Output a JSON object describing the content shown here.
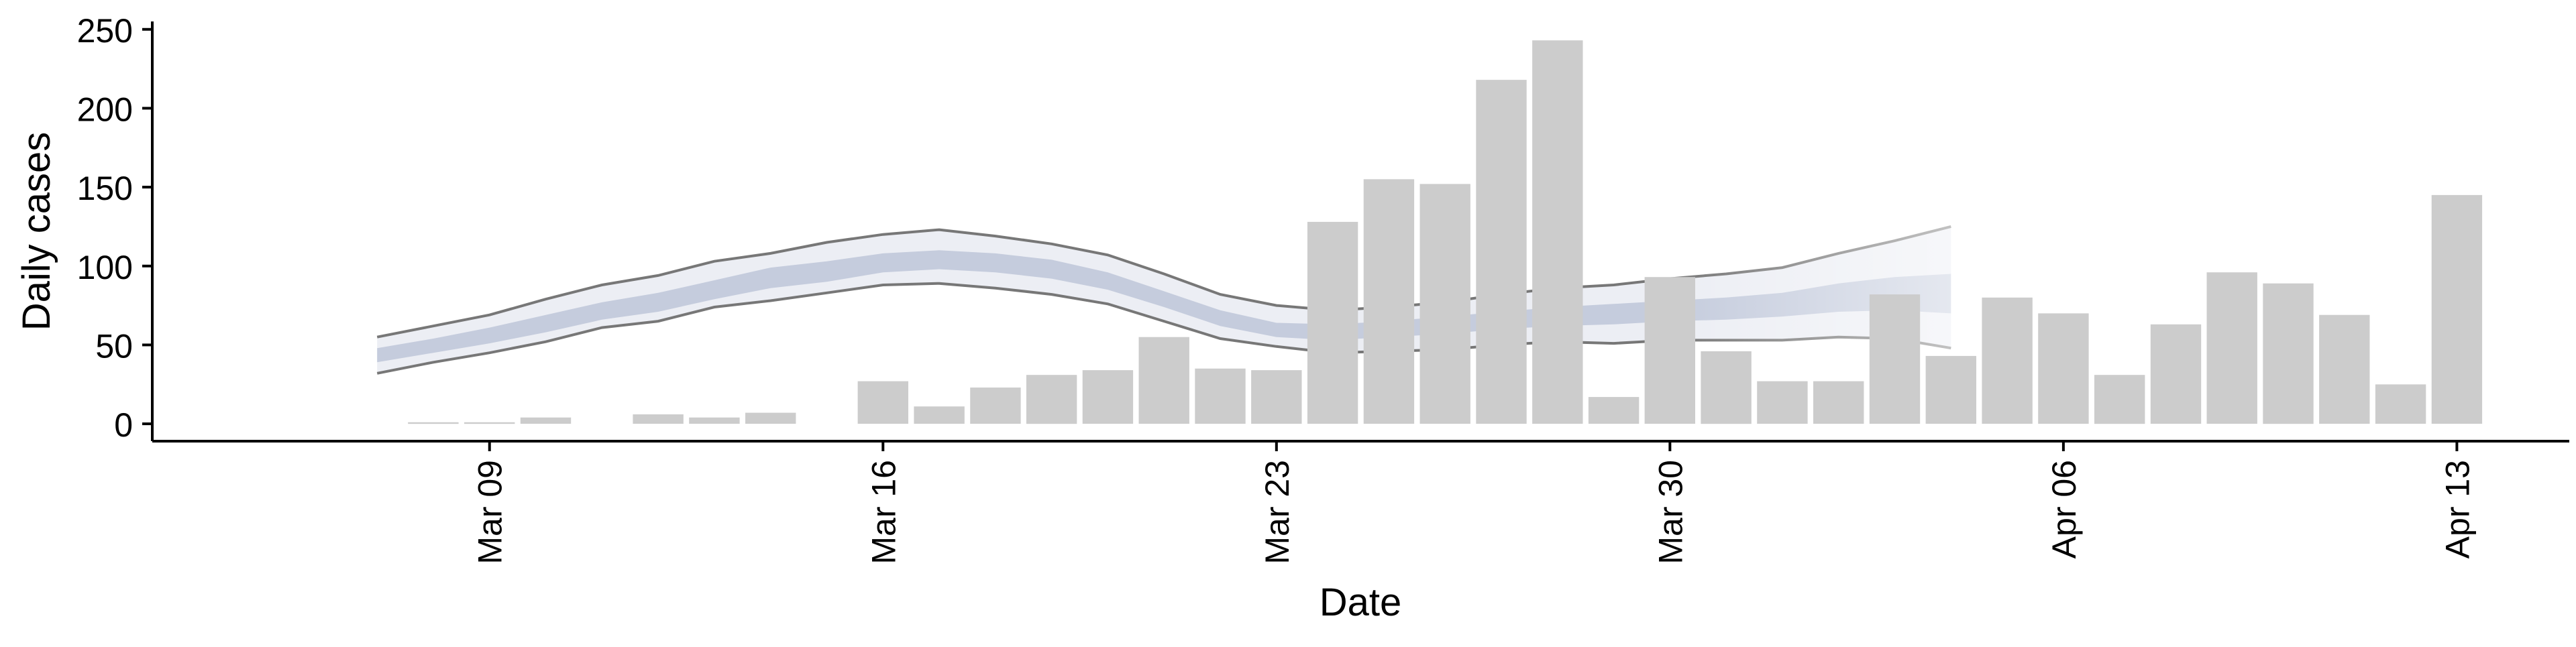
{
  "chart_data": {
    "type": "bar",
    "xlabel": "Date",
    "ylabel": "Daily cases",
    "xlim": [
      "2020-03-03",
      "2020-04-15"
    ],
    "ylim": [
      -11,
      255
    ],
    "x_ticks": [
      {
        "date": "2020-03-09",
        "label": "Mar 09"
      },
      {
        "date": "2020-03-16",
        "label": "Mar 16"
      },
      {
        "date": "2020-03-23",
        "label": "Mar 23"
      },
      {
        "date": "2020-03-30",
        "label": "Mar 30"
      },
      {
        "date": "2020-04-06",
        "label": "Apr 06"
      },
      {
        "date": "2020-04-13",
        "label": "Apr 13"
      }
    ],
    "y_ticks": [
      0,
      50,
      100,
      150,
      200,
      250
    ],
    "grid": false,
    "colors": {
      "bars": "#cccccc",
      "band_outer": "#eceef4",
      "band_inner": "#c5ccdd",
      "band_edge": "#777777",
      "axis": "#000000"
    },
    "series": [
      {
        "kind": "bar",
        "dates": [
          "2020-03-08",
          "2020-03-09",
          "2020-03-10",
          "2020-03-11",
          "2020-03-12",
          "2020-03-13",
          "2020-03-14",
          "2020-03-15",
          "2020-03-16",
          "2020-03-17",
          "2020-03-18",
          "2020-03-19",
          "2020-03-20",
          "2020-03-21",
          "2020-03-22",
          "2020-03-23",
          "2020-03-24",
          "2020-03-25",
          "2020-03-26",
          "2020-03-27",
          "2020-03-28",
          "2020-03-29",
          "2020-03-30",
          "2020-03-31",
          "2020-04-01",
          "2020-04-02",
          "2020-04-03",
          "2020-04-04",
          "2020-04-05",
          "2020-04-06",
          "2020-04-07",
          "2020-04-08",
          "2020-04-09",
          "2020-04-10",
          "2020-04-11",
          "2020-04-12",
          "2020-04-13"
        ],
        "values": [
          1,
          1,
          4,
          0,
          6,
          4,
          7,
          0,
          27,
          11,
          23,
          31,
          34,
          55,
          35,
          34,
          128,
          155,
          152,
          218,
          243,
          17,
          93,
          46,
          27,
          27,
          82,
          43,
          80,
          70,
          31,
          63,
          96,
          89,
          69,
          25,
          145
        ]
      },
      {
        "kind": "band",
        "dates": [
          "2020-03-07",
          "2020-03-08",
          "2020-03-09",
          "2020-03-10",
          "2020-03-11",
          "2020-03-12",
          "2020-03-13",
          "2020-03-14",
          "2020-03-15",
          "2020-03-16",
          "2020-03-17",
          "2020-03-18",
          "2020-03-19",
          "2020-03-20",
          "2020-03-21",
          "2020-03-22",
          "2020-03-23",
          "2020-03-24",
          "2020-03-25",
          "2020-03-26",
          "2020-03-27",
          "2020-03-28",
          "2020-03-29",
          "2020-03-30",
          "2020-03-31",
          "2020-04-01",
          "2020-04-02",
          "2020-04-03",
          "2020-04-04"
        ],
        "upper": [
          55,
          62,
          69,
          79,
          88,
          94,
          103,
          108,
          115,
          120,
          123,
          119,
          114,
          107,
          95,
          82,
          75,
          72,
          74,
          77,
          82,
          86,
          88,
          92,
          95,
          99,
          108,
          116,
          125
        ],
        "lower": [
          32,
          39,
          45,
          52,
          61,
          65,
          74,
          78,
          83,
          88,
          89,
          86,
          82,
          76,
          65,
          54,
          49,
          45,
          46,
          47,
          50,
          52,
          51,
          53,
          53,
          53,
          55,
          54,
          48
        ],
        "inner_upper": [
          48,
          54,
          61,
          69,
          77,
          83,
          91,
          99,
          103,
          108,
          110,
          108,
          104,
          96,
          84,
          72,
          64,
          63,
          65,
          68,
          71,
          74,
          76,
          78,
          80,
          83,
          89,
          93,
          95
        ],
        "inner_lower": [
          39,
          45,
          51,
          58,
          66,
          71,
          79,
          86,
          90,
          96,
          98,
          96,
          92,
          85,
          74,
          62,
          55,
          53,
          55,
          57,
          60,
          62,
          63,
          65,
          66,
          68,
          71,
          72,
          70
        ]
      }
    ]
  }
}
